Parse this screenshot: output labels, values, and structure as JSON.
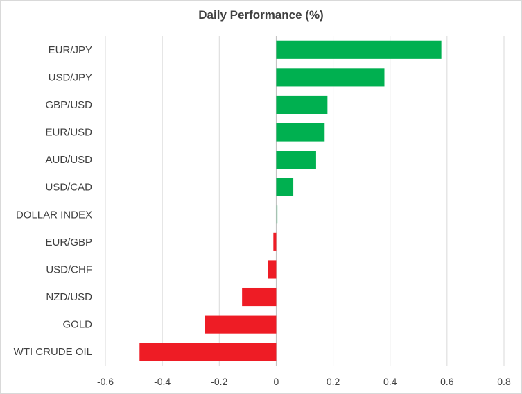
{
  "chart_data": {
    "type": "bar",
    "orientation": "horizontal",
    "title": "Daily Performance (%)",
    "xlabel": "",
    "ylabel": "",
    "xlim": [
      -0.6,
      0.8
    ],
    "xticks": [
      "-0.6",
      "-0.4",
      "-0.2",
      "0",
      "0.2",
      "0.4",
      "0.6",
      "0.8"
    ],
    "grid": true,
    "legend": "none",
    "categories": [
      "EUR/JPY",
      "USD/JPY",
      "GBP/USD",
      "EUR/USD",
      "AUD/USD",
      "USD/CAD",
      "DOLLAR INDEX",
      "EUR/GBP",
      "USD/CHF",
      "NZD/USD",
      "GOLD",
      "WTI CRUDE OIL"
    ],
    "values": [
      0.58,
      0.38,
      0.18,
      0.17,
      0.14,
      0.06,
      0.005,
      -0.01,
      -0.03,
      -0.12,
      -0.25,
      -0.48
    ],
    "colors": {
      "positive": "#00b050",
      "negative": "#ee1c25"
    }
  }
}
